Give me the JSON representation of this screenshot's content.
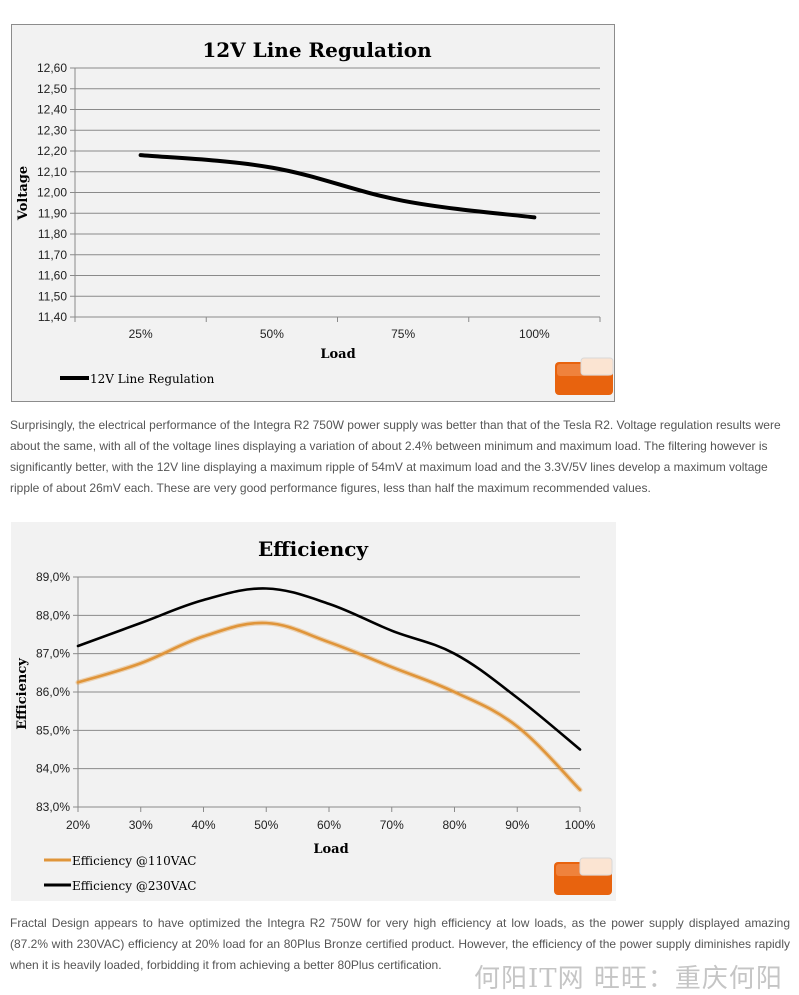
{
  "chart_data": [
    {
      "type": "line",
      "title": "12V Line Regulation",
      "xlabel": "Load",
      "ylabel": "Voltage",
      "categories": [
        "25%",
        "50%",
        "75%",
        "100%"
      ],
      "yticks": [
        "12,60",
        "12,50",
        "12,40",
        "12,30",
        "12,20",
        "12,10",
        "12,00",
        "11,90",
        "11,80",
        "11,70",
        "11,60",
        "11,50",
        "11,40"
      ],
      "ylim": [
        11.4,
        12.6
      ],
      "grid": true,
      "legend_position": "bottom-left",
      "series": [
        {
          "name": "12V Line Regulation",
          "color": "#000000",
          "values": [
            12.18,
            12.12,
            11.96,
            11.88
          ]
        }
      ]
    },
    {
      "type": "line",
      "title": "Efficiency",
      "xlabel": "Load",
      "ylabel": "Efficiency",
      "categories": [
        "20%",
        "30%",
        "40%",
        "50%",
        "60%",
        "70%",
        "80%",
        "90%",
        "100%"
      ],
      "yticks": [
        "89,0%",
        "88,0%",
        "87,0%",
        "86,0%",
        "85,0%",
        "84,0%",
        "83,0%"
      ],
      "ylim": [
        83.0,
        89.0
      ],
      "grid": true,
      "legend_position": "bottom-left",
      "series": [
        {
          "name": "Efficiency @110VAC",
          "color": "#e0953a",
          "values": [
            86.25,
            86.75,
            87.45,
            87.8,
            87.3,
            86.65,
            86.0,
            85.1,
            83.45
          ]
        },
        {
          "name": "Efficiency @230VAC",
          "color": "#000000",
          "values": [
            87.2,
            87.8,
            88.4,
            88.7,
            88.3,
            87.6,
            87.0,
            85.85,
            84.5
          ]
        }
      ]
    }
  ],
  "article": {
    "paragraph1": " Surprisingly, the electrical performance of the Integra R2 750W power supply was better than that of the Tesla R2. Voltage regulation results were about the same, with all of the voltage lines displaying a variation of about 2.4% between minimum and maximum load. The filtering however is significantly better, with the 12V line displaying a maximum ripple of 54mV at maximum load and the 3.3V/5V lines develop a maximum voltage ripple of about 26mV each. These are very good performance figures, less than half the maximum recommended values.",
    "paragraph2": "Fractal Design appears to have optimized the Integra R2 750W for very high efficiency at low loads, as the power supply displayed amazing (87.2% with 230VAC) efficiency at 20% load for an 80Plus Bronze certified product. However, the efficiency of the power supply diminishes rapidly when it is heavily loaded, forbidding it from achieving a better 80Plus certification."
  },
  "watermark": "何阳IT网 旺旺：重庆何阳",
  "logo_icon": "legit-reviews-logo-icon"
}
